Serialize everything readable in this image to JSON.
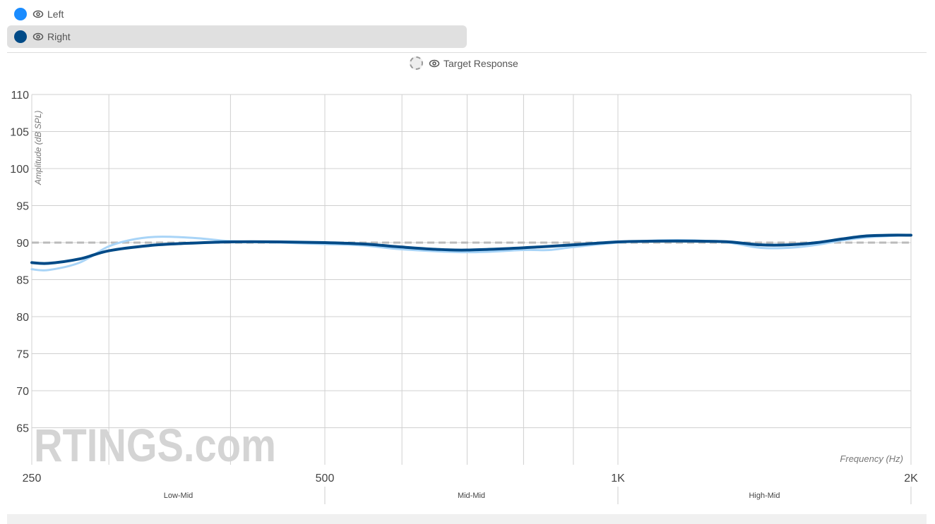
{
  "legend": {
    "items": [
      {
        "label": "Left",
        "color": "#1a8cff",
        "icon": "eye-icon",
        "selected": false
      },
      {
        "label": "Right",
        "color": "#004a87",
        "icon": "eye-icon",
        "selected": true
      }
    ],
    "target": {
      "label": "Target Response",
      "icon": "eye-icon"
    }
  },
  "chart_data": {
    "type": "line",
    "xlabel": "Frequency (Hz)",
    "ylabel": "Amplitude (dB SPL)",
    "xscale": "log",
    "xlim": [
      250,
      2000
    ],
    "ylim": [
      60,
      110
    ],
    "grid": true,
    "y_ticks": [
      65,
      70,
      75,
      80,
      85,
      90,
      95,
      100,
      105,
      110
    ],
    "x_ticks": [
      {
        "value": 250,
        "label": "250"
      },
      {
        "value": 500,
        "label": "500"
      },
      {
        "value": 1000,
        "label": "1K"
      },
      {
        "value": 2000,
        "label": "2K"
      }
    ],
    "x_minor_grid": [
      300,
      400,
      600,
      700,
      800,
      900
    ],
    "bands": [
      {
        "label": "Low-Mid",
        "from": 250,
        "to": 500
      },
      {
        "label": "Mid-Mid",
        "from": 500,
        "to": 1000
      },
      {
        "label": "High-Mid",
        "from": 1000,
        "to": 2000
      }
    ],
    "target_level": 90,
    "series": [
      {
        "name": "Left",
        "color": "#a8d4f7",
        "x": [
          250,
          260,
          280,
          300,
          320,
          340,
          370,
          400,
          450,
          500,
          550,
          600,
          700,
          800,
          850,
          900,
          1000,
          1100,
          1200,
          1300,
          1400,
          1500,
          1600,
          1700,
          1800,
          1900,
          2000
        ],
        "y": [
          86.4,
          86.3,
          87.3,
          89.5,
          90.5,
          90.8,
          90.6,
          90.2,
          90.0,
          89.8,
          89.6,
          89.1,
          88.7,
          89.0,
          89.0,
          89.4,
          90.0,
          90.3,
          90.3,
          90.0,
          89.3,
          89.3,
          89.7,
          90.3,
          90.7,
          90.9,
          91.0
        ]
      },
      {
        "name": "Right",
        "color": "#004a87",
        "x": [
          250,
          260,
          280,
          300,
          330,
          360,
          400,
          450,
          500,
          550,
          600,
          650,
          700,
          800,
          900,
          1000,
          1100,
          1200,
          1300,
          1400,
          1500,
          1600,
          1700,
          1800,
          1900,
          2000
        ],
        "y": [
          87.3,
          87.2,
          87.8,
          88.9,
          89.6,
          89.9,
          90.1,
          90.1,
          90.0,
          89.8,
          89.4,
          89.1,
          89.0,
          89.3,
          89.7,
          90.1,
          90.2,
          90.2,
          90.1,
          89.7,
          89.7,
          90.0,
          90.5,
          90.9,
          91.0,
          91.0
        ]
      }
    ]
  },
  "watermark": "RTINGS.com"
}
